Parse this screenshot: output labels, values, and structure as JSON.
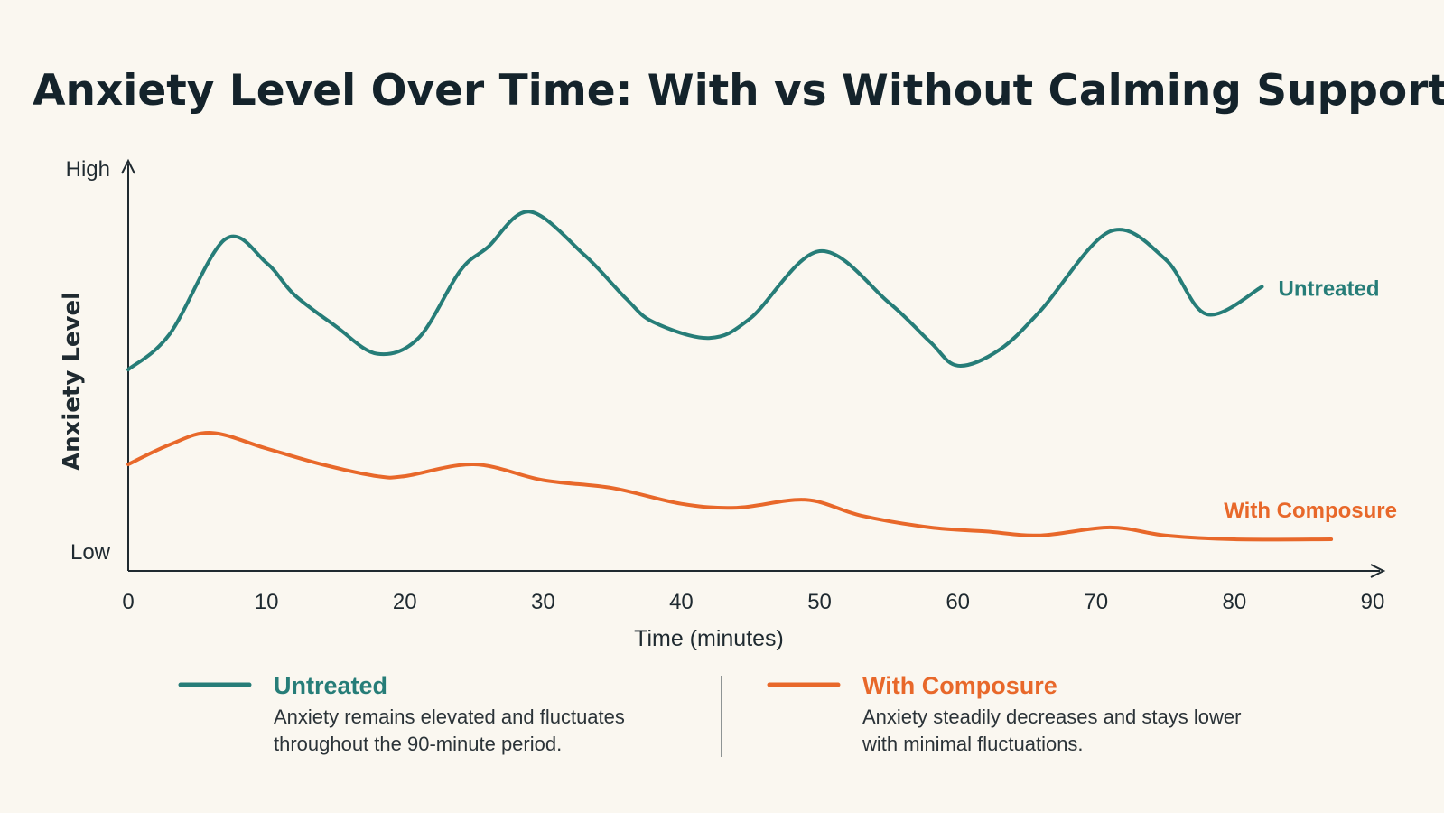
{
  "colors": {
    "untreated": "#267d78",
    "with_composure": "#e8682a",
    "axis": "#1f2a30",
    "background": "#faf7f0"
  },
  "chart_data": {
    "type": "line",
    "title": "Anxiety Level Over Time: With vs Without Calming Support",
    "xlabel": "Time (minutes)",
    "ylabel": "Anxiety Level",
    "y_high_label": "High",
    "y_low_label": "Low",
    "xlim": [
      0,
      90
    ],
    "ylim": [
      0,
      100
    ],
    "x_ticks": [
      0,
      10,
      20,
      30,
      40,
      50,
      60,
      70,
      80,
      90
    ],
    "grid": false,
    "series": [
      {
        "name": "Untreated",
        "key": "untreated",
        "x": [
          0,
          3,
          7,
          10,
          12,
          15,
          18,
          21,
          24,
          26,
          29,
          33,
          36,
          38,
          42,
          45,
          50,
          55,
          58,
          60,
          63,
          66,
          71,
          75,
          78,
          82
        ],
        "y": [
          51,
          60,
          84,
          78,
          70,
          62,
          55,
          59,
          76,
          82,
          91,
          80,
          69,
          63,
          59,
          64,
          81,
          68,
          58,
          52,
          56,
          66,
          86,
          79,
          65,
          72
        ]
      },
      {
        "name": "With Composure",
        "key": "with_composure",
        "x": [
          0,
          3,
          6,
          10,
          14,
          18,
          20,
          25,
          30,
          35,
          40,
          44,
          49,
          53,
          58,
          62,
          66,
          71,
          75,
          80,
          87
        ],
        "y": [
          27,
          32,
          35,
          31,
          27,
          24,
          24,
          27,
          23,
          21,
          17,
          16,
          18,
          14,
          11,
          10,
          9,
          11,
          9,
          8,
          8
        ]
      }
    ],
    "end_labels": {
      "untreated": "Untreated",
      "with_composure": "With Composure"
    },
    "legend": {
      "placement": "bottom",
      "items": [
        {
          "key": "untreated",
          "title": "Untreated",
          "description_lines": [
            "Anxiety remains elevated and fluctuates",
            "throughout the 90-minute period."
          ]
        },
        {
          "key": "with_composure",
          "title": "With Composure",
          "description_lines": [
            "Anxiety steadily decreases and stays lower",
            "with minimal fluctuations."
          ]
        }
      ]
    }
  }
}
